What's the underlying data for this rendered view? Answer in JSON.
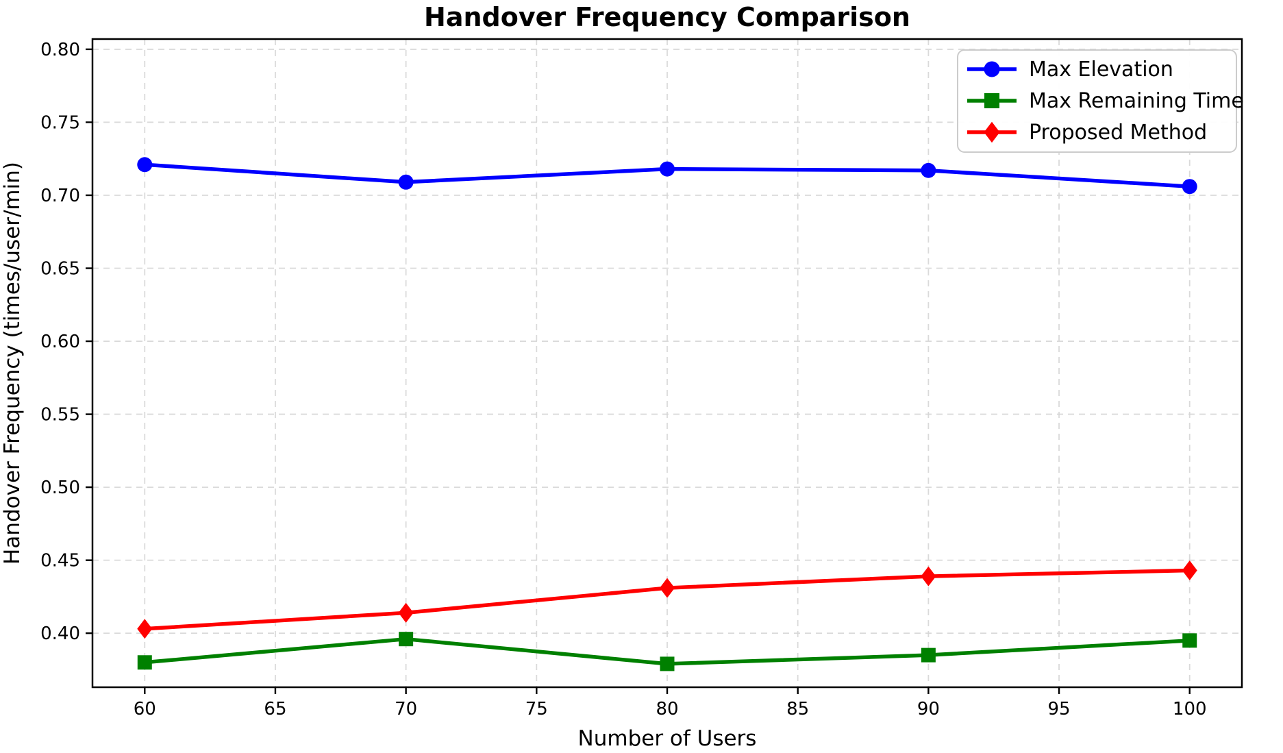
{
  "chart_data": {
    "type": "line",
    "title": "Handover Frequency Comparison",
    "xlabel": "Number of Users",
    "ylabel": "Handover Frequency (times/user/min)",
    "x": [
      60,
      70,
      80,
      90,
      100
    ],
    "series": [
      {
        "name": "Max Elevation",
        "color": "#0000ff",
        "marker": "circle",
        "values": [
          0.721,
          0.709,
          0.718,
          0.717,
          0.706
        ]
      },
      {
        "name": "Max Remaining Time",
        "color": "#008000",
        "marker": "square",
        "values": [
          0.38,
          0.396,
          0.379,
          0.385,
          0.395
        ]
      },
      {
        "name": "Proposed Method",
        "color": "#ff0000",
        "marker": "diamond",
        "values": [
          0.403,
          0.414,
          0.431,
          0.439,
          0.443
        ]
      }
    ],
    "xlim": [
      58,
      102
    ],
    "ylim": [
      0.363,
      0.807
    ],
    "x_ticks": [
      60,
      65,
      70,
      75,
      80,
      85,
      90,
      95,
      100
    ],
    "x_tick_labels": [
      "60",
      "65",
      "70",
      "75",
      "80",
      "85",
      "90",
      "95",
      "100"
    ],
    "y_ticks": [
      0.4,
      0.45,
      0.5,
      0.55,
      0.6,
      0.65,
      0.7,
      0.75,
      0.8
    ],
    "y_tick_labels": [
      "0.40",
      "0.45",
      "0.50",
      "0.55",
      "0.60",
      "0.65",
      "0.70",
      "0.75",
      "0.80"
    ],
    "grid": true,
    "grid_style": "dashed",
    "legend_position": "upper right",
    "colors": {
      "grid": "#d6d6d6",
      "axis": "#000000",
      "background": "#ffffff",
      "legend_border": "#cccccc",
      "legend_background": "#ffffff"
    }
  }
}
